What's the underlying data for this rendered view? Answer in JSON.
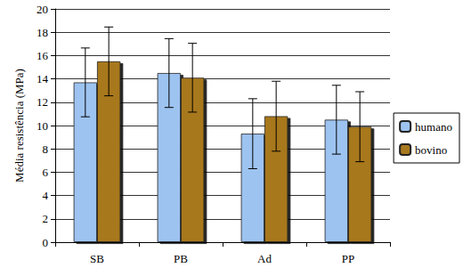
{
  "chart_data": {
    "type": "bar",
    "y_label": "Média resistência (MPa)",
    "categories": [
      "SB",
      "PB",
      "Ad",
      "PP"
    ],
    "series": [
      {
        "name": "humano",
        "color": "#9dc3f0",
        "values": [
          13.7,
          14.5,
          9.3,
          10.5
        ],
        "errors": [
          2.95,
          2.95,
          3.0,
          2.95
        ]
      },
      {
        "name": "bovino",
        "color": "#a8781f",
        "values": [
          15.5,
          14.1,
          10.8,
          9.9
        ],
        "errors": [
          2.95,
          2.95,
          3.0,
          3.0
        ]
      }
    ],
    "ylim": [
      0,
      20
    ],
    "yticks": [
      0,
      2,
      4,
      6,
      8,
      10,
      12,
      14,
      16,
      18,
      20
    ],
    "grid": true,
    "legend": "right"
  }
}
